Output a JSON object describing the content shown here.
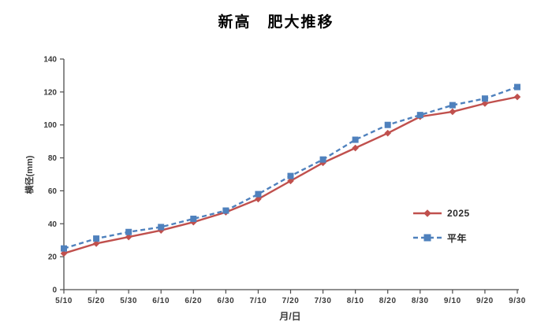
{
  "title": "新高　肥大推移",
  "chart_data": {
    "type": "line",
    "title": "新高　肥大推移",
    "xlabel": "月/日",
    "ylabel": "横径(mm)",
    "categories": [
      "5/10",
      "5/20",
      "5/30",
      "6/10",
      "6/20",
      "6/30",
      "7/10",
      "7/20",
      "7/30",
      "8/10",
      "8/20",
      "8/30",
      "9/10",
      "9/20",
      "9/30"
    ],
    "series": [
      {
        "name": "2025",
        "color": "#C0504D",
        "line": "solid",
        "marker": "diamond",
        "values": [
          22,
          28,
          32,
          36,
          41,
          47,
          55,
          66,
          77,
          86,
          95,
          105,
          108,
          113,
          117
        ]
      },
      {
        "name": "平年",
        "color": "#4F81BD",
        "line": "dashed",
        "marker": "square",
        "values": [
          25,
          31,
          35,
          38,
          43,
          48,
          58,
          69,
          79,
          91,
          100,
          106,
          112,
          116,
          123
        ]
      }
    ],
    "ylim": [
      0,
      140
    ],
    "ytick_step": 20,
    "grid": false,
    "legend_position": "middle-right"
  },
  "colors": {
    "background": "#ffffff",
    "axis": "#4d4d4d",
    "tick_label": "#3a3a3a",
    "title_text": "#000000",
    "series_2025": "#C0504D",
    "series_heinen": "#4F81BD"
  }
}
